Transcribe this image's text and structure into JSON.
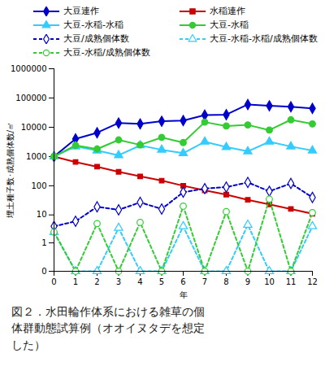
{
  "chart_data": {
    "type": "line",
    "title": "図２．水田輪作体系における雑草の個体群動態試算例（オオイヌタデを想定した）",
    "x_label": "年",
    "y_label": "埋土種子数･成熟個体数/㎡",
    "x": [
      0,
      1,
      2,
      3,
      4,
      5,
      6,
      7,
      8,
      9,
      10,
      11,
      12
    ],
    "xlim": [
      0,
      12
    ],
    "xticks": [
      0,
      1,
      2,
      3,
      4,
      5,
      6,
      7,
      8,
      9,
      10,
      11,
      12
    ],
    "ylim": [
      0,
      1000000
    ],
    "yticks": [
      0,
      1,
      10,
      100,
      1000,
      10000,
      100000,
      1000000
    ],
    "log": "y",
    "series": [
      {
        "name": "大豆連作",
        "color": "#0000cc",
        "marker": "diamond",
        "line_style": "solid",
        "values": [
          1000,
          4000,
          6500,
          14000,
          13000,
          16000,
          17000,
          26000,
          27000,
          60000,
          54000,
          50000,
          44000
        ]
      },
      {
        "name": "水稲連作",
        "color": "#cc0000",
        "marker": "square",
        "line_style": "solid",
        "values": [
          1000,
          650,
          450,
          300,
          210,
          150,
          100,
          70,
          50,
          33,
          23,
          16,
          11
        ]
      },
      {
        "name": "大豆-水稲-水稲",
        "color": "#33ccff",
        "marker": "triangle",
        "line_style": "solid",
        "values": [
          1000,
          2200,
          1600,
          1100,
          2400,
          1700,
          1300,
          3200,
          2100,
          1500,
          3200,
          2200,
          1600
        ]
      },
      {
        "name": "大豆-水稲",
        "color": "#33cc33",
        "marker": "circle",
        "line_style": "solid",
        "values": [
          1000,
          2400,
          1800,
          3700,
          2500,
          4500,
          3000,
          15000,
          11000,
          12000,
          8000,
          18000,
          13000
        ]
      },
      {
        "name": "大豆/成熟個体数",
        "color": "#0000cc",
        "marker": "open_diamond",
        "line_style": "dashed",
        "values": [
          4,
          6,
          19,
          15,
          27,
          16,
          60,
          80,
          90,
          130,
          65,
          120,
          40
        ]
      },
      {
        "name": "大豆-水稲-水稲/成熟個体数",
        "color": "#33ccff",
        "marker": "open_triangle",
        "line_style": "dashed",
        "values": [
          2.5,
          0,
          0,
          3.5,
          0,
          0,
          4,
          0,
          0,
          4.5,
          0,
          0,
          4
        ]
      },
      {
        "name": "大豆-水稲/成熟個体数",
        "color": "#33cc33",
        "marker": "open_circle",
        "line_style": "dashed",
        "values": [
          2.5,
          0,
          5,
          0,
          5.5,
          0,
          20,
          0,
          13,
          0,
          35,
          0,
          12
        ]
      }
    ]
  }
}
